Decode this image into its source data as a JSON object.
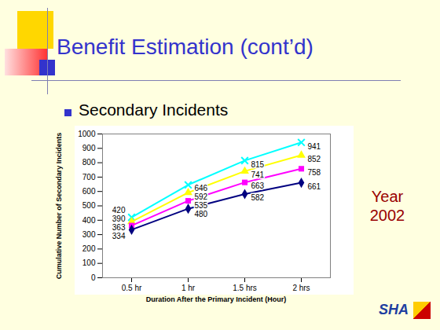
{
  "slide": {
    "title": "Benefit Estimation (cont’d)",
    "bullet": "Secondary Incidents",
    "logo_text": "SHA"
  },
  "chart_data": {
    "type": "line",
    "categories": [
      "0.5 hr",
      "1 hr",
      "1.5 hrs",
      "2 hrs"
    ],
    "x_label": "Duration After the Primary Incident (Hour)",
    "y_label": "Cumulative Number of Secondary Incidents",
    "annotation": "Year 2002",
    "series": [
      {
        "color": "#00FFFF",
        "marker": "x",
        "values": [
          420,
          646,
          815,
          941
        ]
      },
      {
        "color": "#FFFF00",
        "marker": "triangle",
        "values": [
          390,
          592,
          741,
          852
        ]
      },
      {
        "color": "#FF00FF",
        "marker": "square",
        "values": [
          363,
          535,
          663,
          758
        ]
      },
      {
        "color": "#000080",
        "marker": "diamond",
        "values": [
          334,
          480,
          582,
          661
        ]
      }
    ],
    "ylim": [
      0,
      1000
    ],
    "yticks": [
      0,
      100,
      200,
      300,
      400,
      500,
      600,
      700,
      800,
      900,
      1000
    ],
    "grid": false,
    "data_labels": true
  }
}
